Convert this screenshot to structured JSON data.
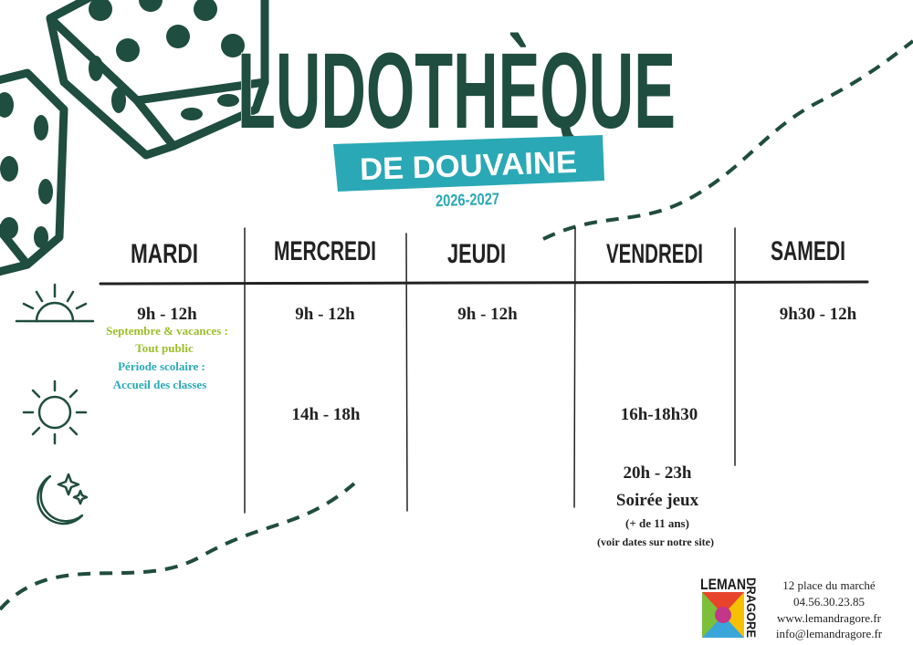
{
  "header": {
    "title": "LUDOTHÈQUE",
    "subtitle": "DE DOUVAINE",
    "years": "2026-2027"
  },
  "schedule": {
    "days": [
      "MARDI",
      "MERCREDI",
      "JEUDI",
      "VENDREDI",
      "SAMEDI"
    ],
    "mardi": {
      "morning": "9h - 12h",
      "notes": [
        "Septembre & vacances :",
        "Tout public",
        "Période scolaire :",
        "Accueil des classes"
      ]
    },
    "mercredi": {
      "morning": "9h - 12h",
      "afternoon": "14h - 18h"
    },
    "jeudi": {
      "morning": "9h - 12h"
    },
    "vendredi": {
      "afternoon": "16h-18h30",
      "evening": "20h - 23h",
      "evening_title": "Soirée jeux",
      "evening_notes": [
        "(+ de 11 ans)",
        "(voir dates sur notre site)"
      ]
    },
    "samedi": {
      "morning": "9h30 - 12h"
    }
  },
  "footer": {
    "logo": [
      "LEMAN",
      "DRAGORE"
    ],
    "contact": [
      "12 place du marché",
      "04.56.30.23.85",
      "www.lemandragore.fr",
      "info@lemandragore.fr"
    ]
  }
}
